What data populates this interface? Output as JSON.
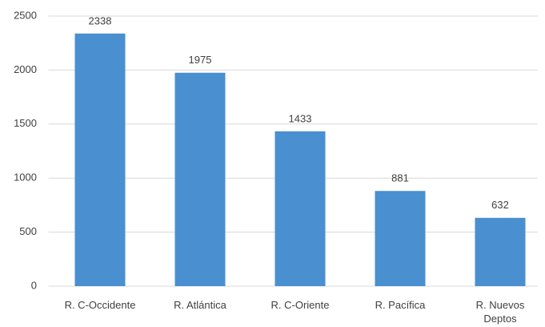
{
  "chart_data": {
    "type": "bar",
    "categories": [
      "R. C-Occidente",
      "R.  Atlántica",
      "R. C-Oriente",
      "R. Pacífica",
      "R. Nuevos Deptos"
    ],
    "values": [
      2338,
      1975,
      1433,
      881,
      632
    ],
    "color": "#4a8fd0",
    "ylim": [
      0,
      2500
    ],
    "yticks": [
      0,
      500,
      1000,
      1500,
      2000,
      2500
    ],
    "grid": true
  }
}
